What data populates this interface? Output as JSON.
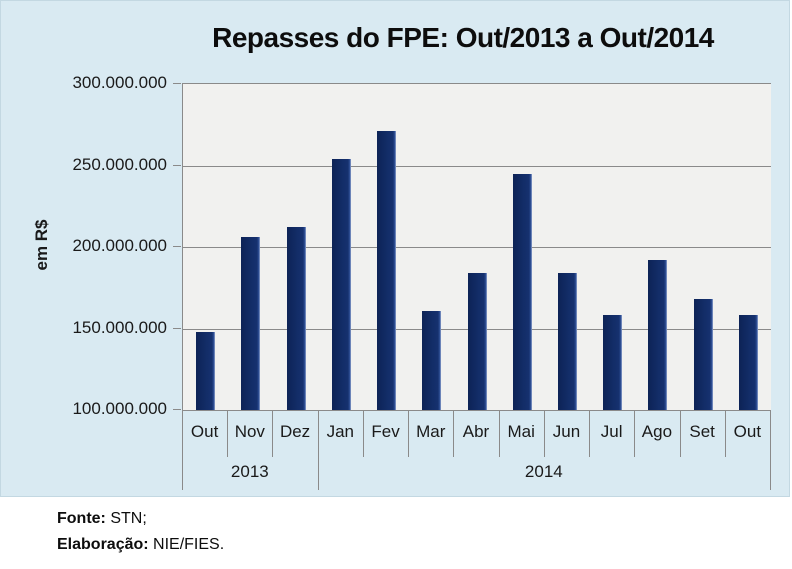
{
  "chart_data": {
    "type": "bar",
    "title": "Repasses do FPE: Out/2013 a Out/2014",
    "ylabel": "em R$",
    "categories": [
      "Out",
      "Nov",
      "Dez",
      "Jan",
      "Fev",
      "Mar",
      "Abr",
      "Mai",
      "Jun",
      "Jul",
      "Ago",
      "Set",
      "Out"
    ],
    "values": [
      148000000,
      206000000,
      212000000,
      254000000,
      271000000,
      161000000,
      184000000,
      245000000,
      184000000,
      158000000,
      192000000,
      168000000,
      158000000
    ],
    "year_groups": [
      {
        "label": "2013",
        "span": 3
      },
      {
        "label": "2014",
        "span": 10
      }
    ],
    "ylim": [
      100000000,
      300000000
    ],
    "y_tick_labels": [
      "300.000.000",
      "250.000.000",
      "200.000.000",
      "150.000.000",
      "100.000.000"
    ],
    "grid": true,
    "legend": "none",
    "bar_color": "#132e6a",
    "plot_background": "#f1f1ef",
    "panel_background": "#d9eaf2",
    "gridline_color": "#8a8a8a"
  },
  "footer": {
    "fonte_label": "Fonte:",
    "fonte_value": " STN;",
    "elaboracao_label": "Elaboração:",
    "elaboracao_value": " NIE/FIES."
  }
}
